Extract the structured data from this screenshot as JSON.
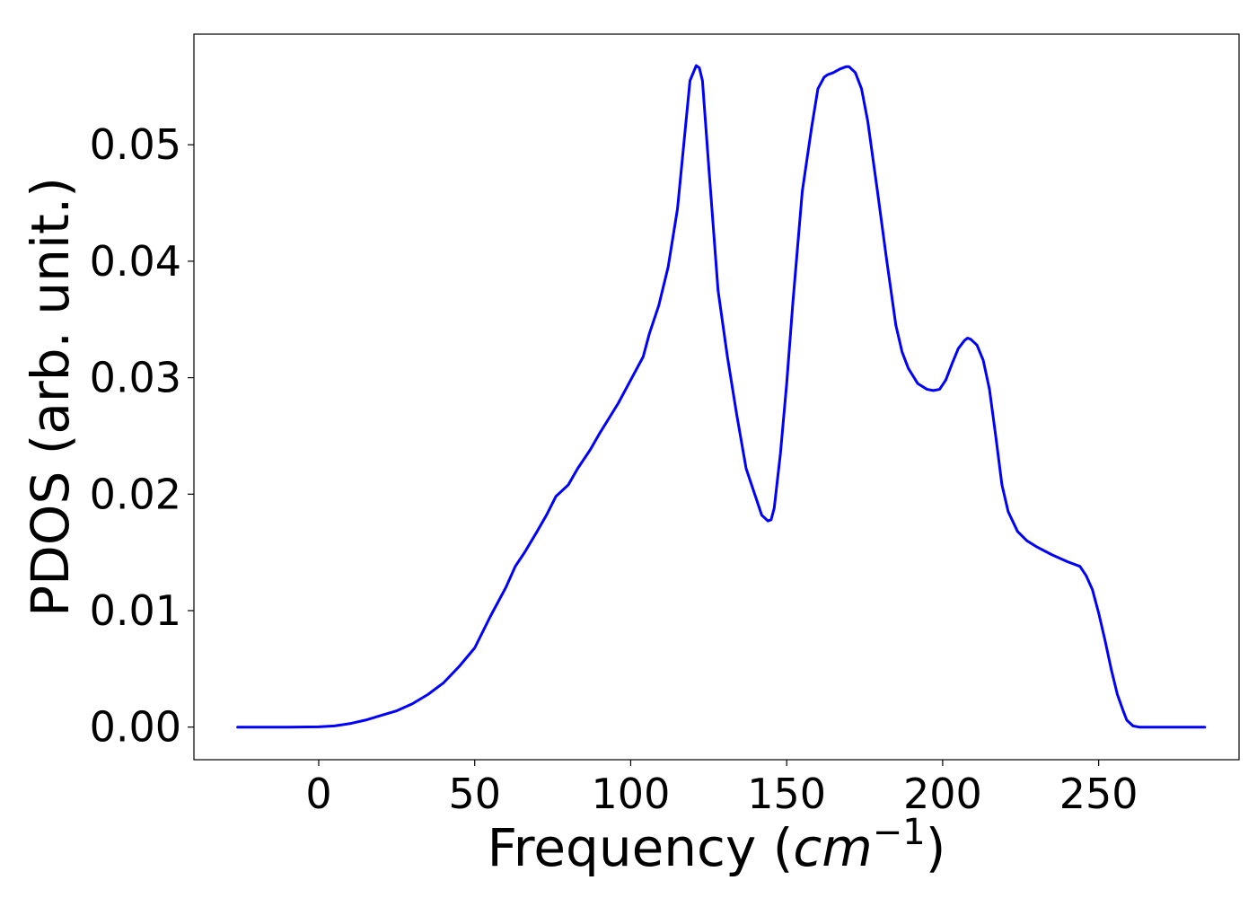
{
  "chart_data": {
    "type": "line",
    "xlabel": "Frequency (",
    "xlabel_math": "cm",
    "xlabel_sup": "−1",
    "xlabel_end": ")",
    "ylabel": "PDOS (arb. unit.)",
    "xlim": [
      -40,
      295
    ],
    "ylim": [
      -0.0028,
      0.0595
    ],
    "xticks": [
      0,
      50,
      100,
      150,
      200,
      250
    ],
    "xtick_labels": [
      "0",
      "50",
      "100",
      "150",
      "200",
      "250"
    ],
    "yticks": [
      0.0,
      0.01,
      0.02,
      0.03,
      0.04,
      0.05
    ],
    "ytick_labels": [
      "0.00",
      "0.01",
      "0.02",
      "0.03",
      "0.04",
      "0.05"
    ],
    "grid": false,
    "series": [
      {
        "color": "#0000ff",
        "x": [
          -26,
          -10,
          0,
          5,
          10,
          15,
          20,
          25,
          30,
          35,
          40,
          45,
          50,
          55,
          60,
          63,
          66,
          70,
          73,
          76,
          80,
          83,
          87,
          90,
          93,
          96,
          100,
          104,
          106,
          109,
          112,
          115,
          117,
          119,
          121,
          122,
          123,
          125,
          128,
          131,
          134,
          137,
          140,
          142,
          144,
          145,
          146,
          148,
          150,
          152,
          155,
          158,
          160,
          162,
          163,
          165,
          167,
          169,
          170,
          172,
          174,
          176,
          179,
          182,
          185,
          187,
          189,
          192,
          195,
          197,
          199,
          201,
          203,
          205,
          207,
          208,
          209,
          211,
          213,
          215,
          217,
          219,
          221,
          224,
          227,
          230,
          235,
          240,
          244,
          246,
          248,
          250,
          252,
          254,
          256,
          258,
          259,
          261,
          263,
          265,
          270,
          284
        ],
        "y": [
          0.0,
          0.0,
          2e-05,
          0.0001,
          0.0003,
          0.0006,
          0.001,
          0.0014,
          0.002,
          0.0028,
          0.0038,
          0.0052,
          0.0068,
          0.0095,
          0.012,
          0.0138,
          0.015,
          0.0168,
          0.0182,
          0.0198,
          0.0208,
          0.0222,
          0.0238,
          0.0252,
          0.0265,
          0.0278,
          0.0298,
          0.0318,
          0.0338,
          0.0362,
          0.0395,
          0.0445,
          0.05,
          0.0555,
          0.0568,
          0.0566,
          0.0555,
          0.0482,
          0.0375,
          0.0318,
          0.0268,
          0.0222,
          0.0198,
          0.0182,
          0.0177,
          0.0178,
          0.0188,
          0.0235,
          0.0295,
          0.0365,
          0.046,
          0.0515,
          0.0548,
          0.0558,
          0.056,
          0.0562,
          0.0565,
          0.0567,
          0.0567,
          0.0562,
          0.0548,
          0.052,
          0.0462,
          0.0402,
          0.0345,
          0.0322,
          0.0308,
          0.0295,
          0.029,
          0.0289,
          0.029,
          0.0298,
          0.0312,
          0.0325,
          0.0332,
          0.0334,
          0.0333,
          0.0328,
          0.0315,
          0.029,
          0.025,
          0.0208,
          0.0185,
          0.0168,
          0.016,
          0.0155,
          0.0148,
          0.0142,
          0.0138,
          0.013,
          0.0118,
          0.0098,
          0.0075,
          0.005,
          0.0028,
          0.0013,
          0.0006,
          0.0001,
          0.0,
          0.0,
          0.0,
          0.0
        ]
      }
    ]
  }
}
